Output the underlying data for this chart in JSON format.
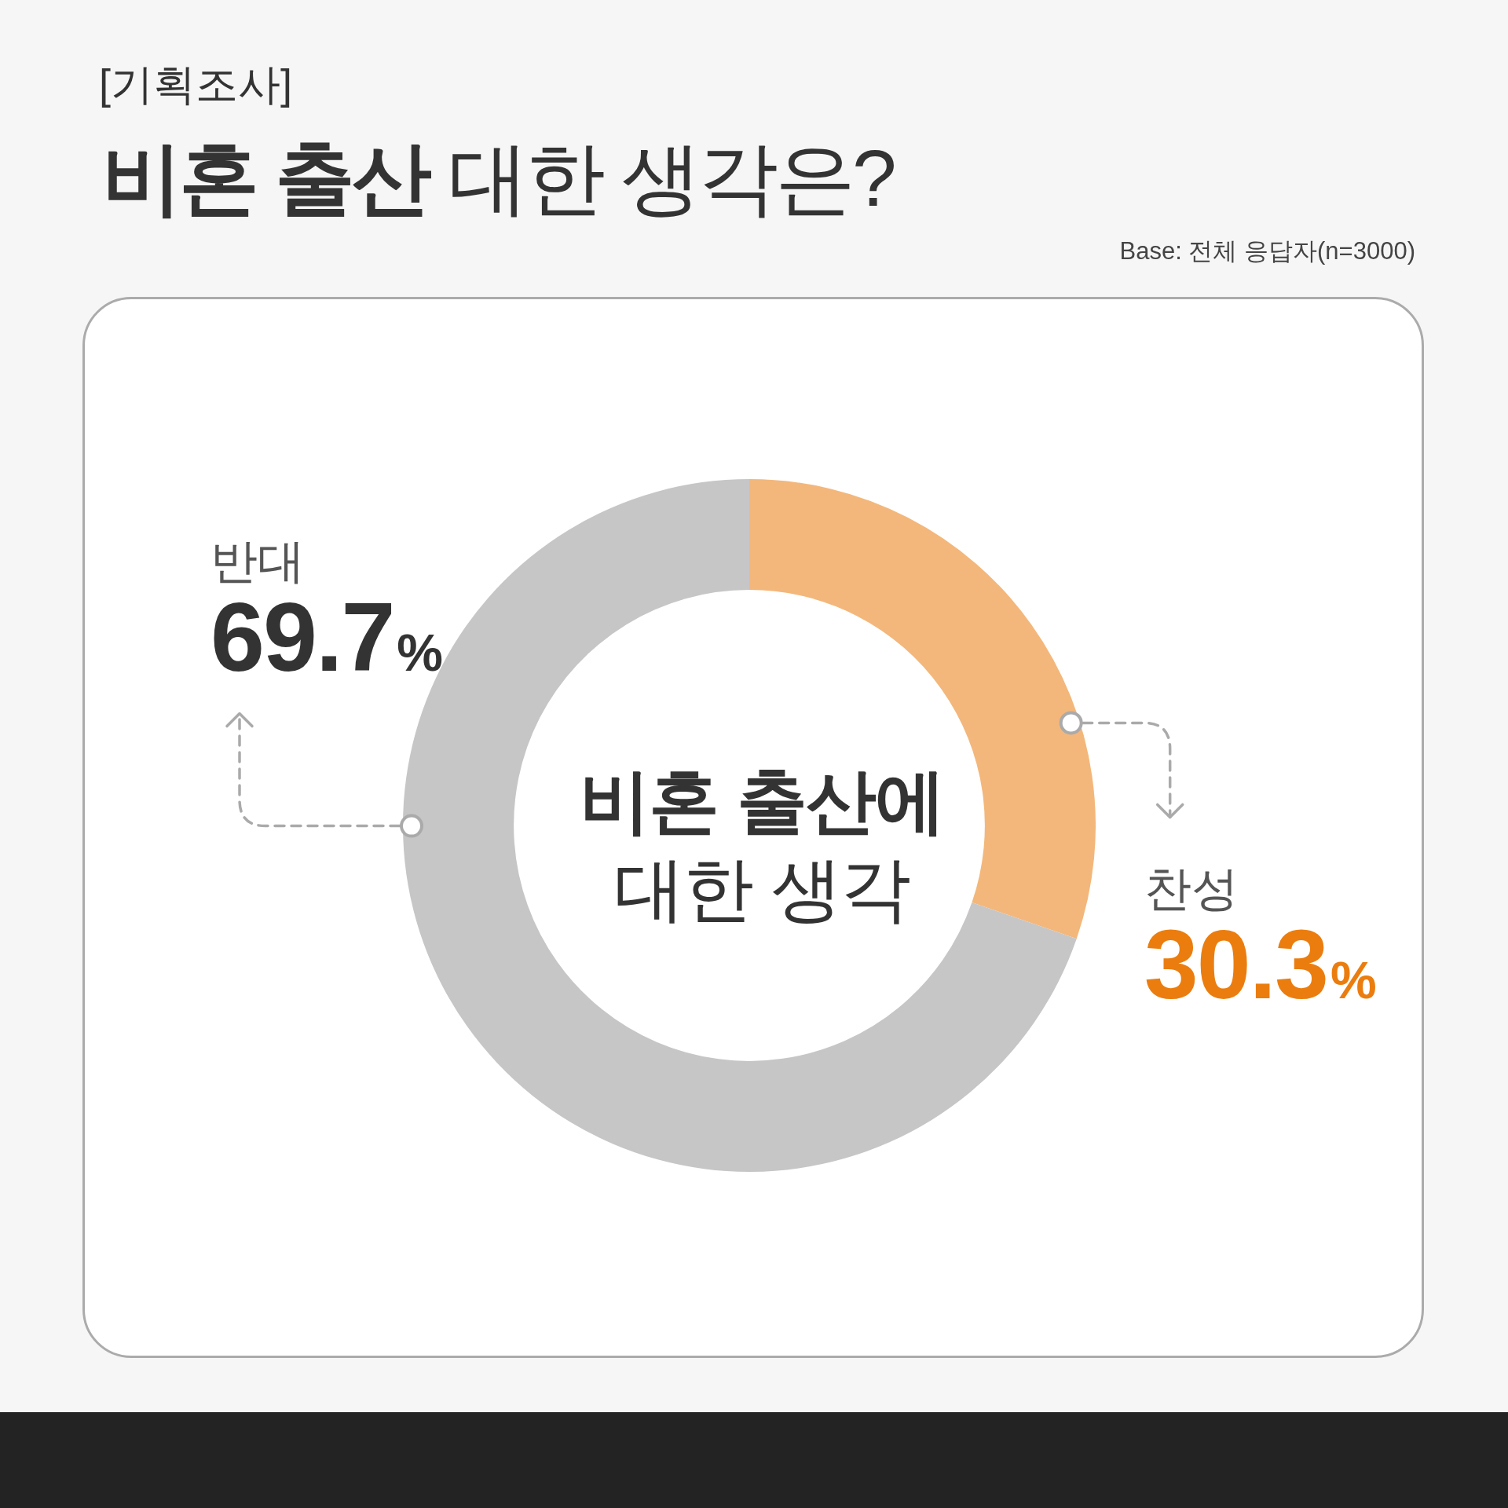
{
  "chart_data": {
    "type": "donut",
    "subtitle": "[기획조사]",
    "title": "비혼 출산 대한 생각은?",
    "annotations": [
      "Base: 전체 응답자(n=3000)",
      "비혼 출산에 대한 생각"
    ],
    "categories": [
      "찬성",
      "반대"
    ],
    "values": [
      30.3,
      69.7
    ],
    "colors": [
      "#f3b77b",
      "#c6c6c6"
    ],
    "value_labels": [
      "30.3%",
      "69.7%"
    ]
  }
}
